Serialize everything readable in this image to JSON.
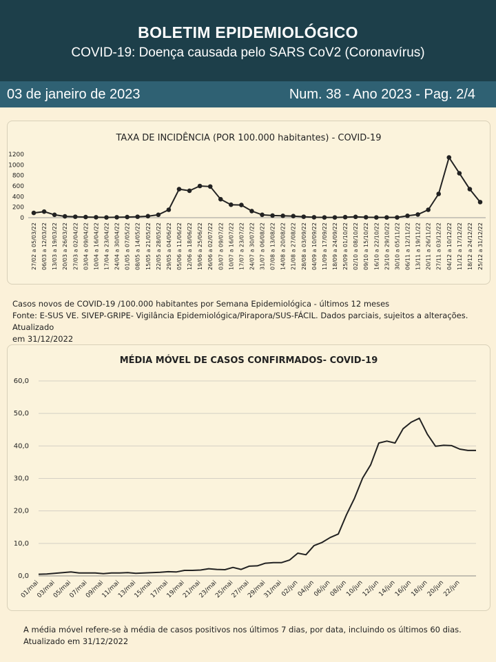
{
  "header": {
    "title": "BOLETIM EPIDEMIOLÓGICO",
    "subtitle": "COVID-19: Doença  causada pelo SARS CoV2 (Coronavírus)"
  },
  "infobar": {
    "date": "03 de janeiro de 2023",
    "issue": "Num. 38 -  Ano 2023 - Pag. 2/4"
  },
  "note1": {
    "line1": "Casos novos de COVID-19 /100.000 habitantes por Semana Epidemiológica -  últimos 12 meses",
    "line2": "Fonte: E-SUS VE. SIVEP-GRIPE- Vigilância Epidemiológica/Pirapora/SUS-FÁCIL. Dados parciais, sujeitos a alterações. Atualizado",
    "line3": "em  31/12/2022"
  },
  "note2": {
    "line1": "A média móvel refere-se à média de casos positivos nos últimos 7 dias, por data, incluindo os últimos 60 dias.",
    "line2": "Atualizado em 31/12/2022"
  },
  "colors": {
    "header": "#1d3f4a",
    "bar": "#2f6173",
    "line": "#222222",
    "grid": "#d4d0c4"
  },
  "chart_data": [
    {
      "type": "line",
      "title": "TAXA DE INCIDÊNCIA (POR 100.000 habitantes) - COVID-19",
      "xlabel": "",
      "ylabel": "",
      "ylim": [
        0,
        1200
      ],
      "yticks": [
        "0",
        "200",
        "400",
        "600",
        "800",
        "1000",
        "1200"
      ],
      "grid": false,
      "markers": true,
      "categories": [
        "27/02 a 05/03/22",
        "06/03 a 12/03/22",
        "13/03 a 19/03/22",
        "20/03 a 26/03/22",
        "27/03 a 02/04/22",
        "03/04 a 09/04/22",
        "10/04 a 16/04/22",
        "17/04 a 23/04/22",
        "24/04 a 30/04/22",
        "01/05 a 07/05/22",
        "08/05 a 14/05/22",
        "15/05 a 21/05/22",
        "22/05 a 28/05/22",
        "29/05 a 04/06/22",
        "05/06 a 11/06/22",
        "12/06 a 18/06/22",
        "19/06 a 25/06/22",
        "26/06 a 02/07/22",
        "03/07 a 09/07/22",
        "10/07 a 16/07/22",
        "17/07 a 23/07/22",
        "24/07 a 30/07/22",
        "31/07 a 06/08/22",
        "07/08 a 13/08/22",
        "14/08 a 20/08/22",
        "21/08 a 27/08/22",
        "28/08 a 03/09/22",
        "04/09 a 10/09/22",
        "11/09 a 17/09/22",
        "18/09 a 24/09/22",
        "25/09 a 01/10/22",
        "02/10 a 08/10/22",
        "09/10 a 15/10/22",
        "16/10 a 22/10/22",
        "23/10 a 29/10/22",
        "30/10 a 05/11/22",
        "06/11 a 12/11/22",
        "13/11 a 19/11/22",
        "20/11 a 26/11/22",
        "27/11 a 03/12/22",
        "04/12 a 10/12/22",
        "11/12 a 17/12/22",
        "18/12 a 24/12/22",
        "25/12 a 31/12/22"
      ],
      "values": [
        90,
        115,
        55,
        25,
        18,
        12,
        8,
        5,
        8,
        12,
        18,
        28,
        55,
        150,
        540,
        510,
        600,
        590,
        350,
        245,
        240,
        125,
        55,
        40,
        35,
        30,
        18,
        8,
        5,
        5,
        10,
        15,
        8,
        5,
        5,
        5,
        35,
        60,
        150,
        450,
        1140,
        840,
        540,
        295
      ]
    },
    {
      "type": "line",
      "title": "MÉDIA MÓVEL DE CASOS CONFIRMADOS-  COVID-19",
      "xlabel": "",
      "ylabel": "",
      "ylim": [
        0,
        60
      ],
      "yticks": [
        "0,0",
        "10,0",
        "20,0",
        "30,0",
        "40,0",
        "50,0",
        "60,0"
      ],
      "grid": true,
      "markers": false,
      "xticks": [
        "01/mai",
        "03/mai",
        "05/mai",
        "07/mai",
        "09/mai",
        "11/mai",
        "13/mai",
        "15/mai",
        "17/mai",
        "19/mai",
        "21/mai",
        "23/mai",
        "25/mai",
        "27/mai",
        "29/mai",
        "31/mai",
        "02/jun",
        "04/jun",
        "06/jun",
        "08/jun",
        "10/jun",
        "12/jun",
        "14/jun",
        "16/jun",
        "18/jun",
        "20/jun",
        "22/jun"
      ],
      "values": [
        0.5,
        0.6,
        0.8,
        1.0,
        1.2,
        0.9,
        0.9,
        0.9,
        0.7,
        0.9,
        0.9,
        1.0,
        0.8,
        0.9,
        1.0,
        1.1,
        1.3,
        1.2,
        1.7,
        1.7,
        1.8,
        2.2,
        2.0,
        1.9,
        2.6,
        2.0,
        3.0,
        3.1,
        3.9,
        4.1,
        4.1,
        4.9,
        7.0,
        6.5,
        9.3,
        10.3,
        11.8,
        12.9,
        18.8,
        23.9,
        30.1,
        34.2,
        40.9,
        41.5,
        40.9,
        45.3,
        47.3,
        48.5,
        43.6,
        39.9,
        40.2,
        40.1,
        39.0,
        38.6,
        38.6
      ]
    }
  ]
}
